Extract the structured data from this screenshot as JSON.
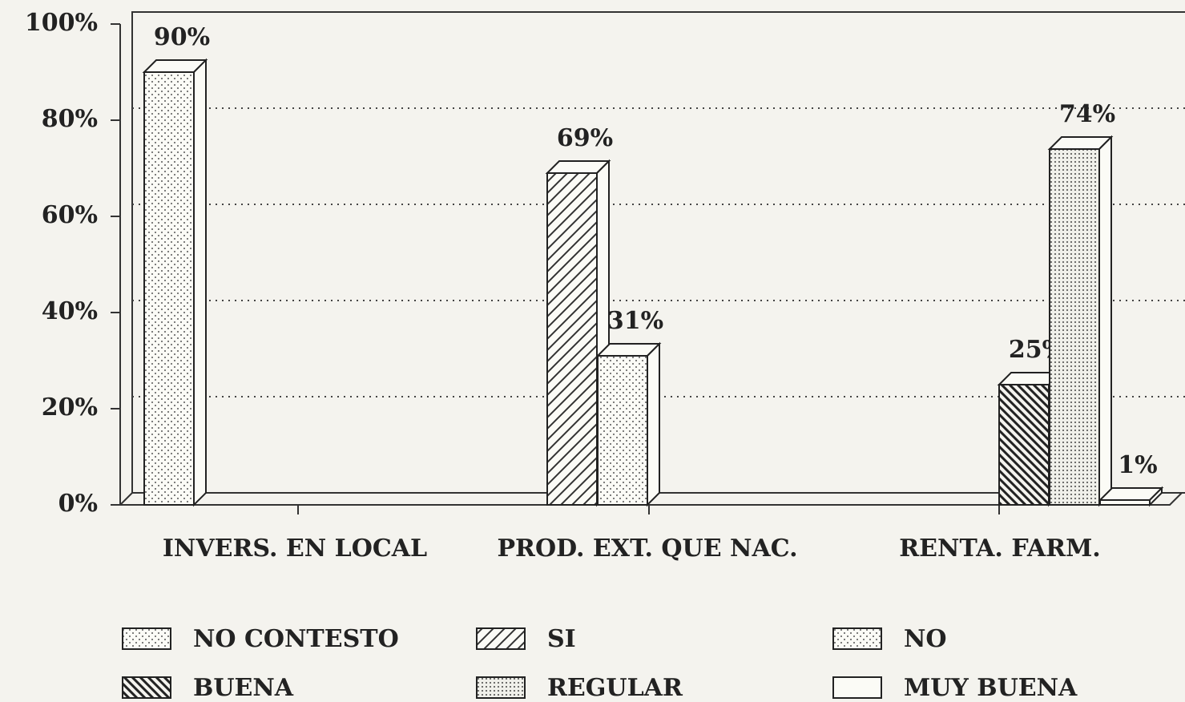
{
  "chart_data": {
    "type": "bar3d",
    "categories": [
      "INVERS. EN LOCAL",
      "PROD. EXT. QUE NAC.",
      "RENTA. FARM."
    ],
    "series": [
      {
        "name": "NO CONTESTO",
        "pattern": "dots",
        "values": [
          90,
          null,
          null
        ],
        "value_labels": [
          "90%",
          null,
          null
        ]
      },
      {
        "name": "SI",
        "pattern": "hatch",
        "values": [
          null,
          69,
          null
        ],
        "value_labels": [
          null,
          "69%",
          null
        ]
      },
      {
        "name": "NO",
        "pattern": "dots",
        "values": [
          null,
          31,
          null
        ],
        "value_labels": [
          null,
          "31%",
          null
        ]
      },
      {
        "name": "BUENA",
        "pattern": "backhatch",
        "values": [
          null,
          null,
          25
        ],
        "value_labels": [
          null,
          null,
          "25%"
        ]
      },
      {
        "name": "REGULAR",
        "pattern": "densedots",
        "values": [
          null,
          null,
          74
        ],
        "value_labels": [
          null,
          null,
          "74%"
        ]
      },
      {
        "name": "MUY BUENA",
        "pattern": "none",
        "values": [
          null,
          null,
          1
        ],
        "value_labels": [
          null,
          null,
          "1%"
        ]
      }
    ],
    "ylim": [
      0,
      100
    ],
    "yticks": [
      {
        "value": 0,
        "label": "0%"
      },
      {
        "value": 20,
        "label": "20%"
      },
      {
        "value": 40,
        "label": "40%"
      },
      {
        "value": 60,
        "label": "60%"
      },
      {
        "value": 80,
        "label": "80%"
      },
      {
        "value": 100,
        "label": "100%"
      }
    ],
    "grid": true
  }
}
